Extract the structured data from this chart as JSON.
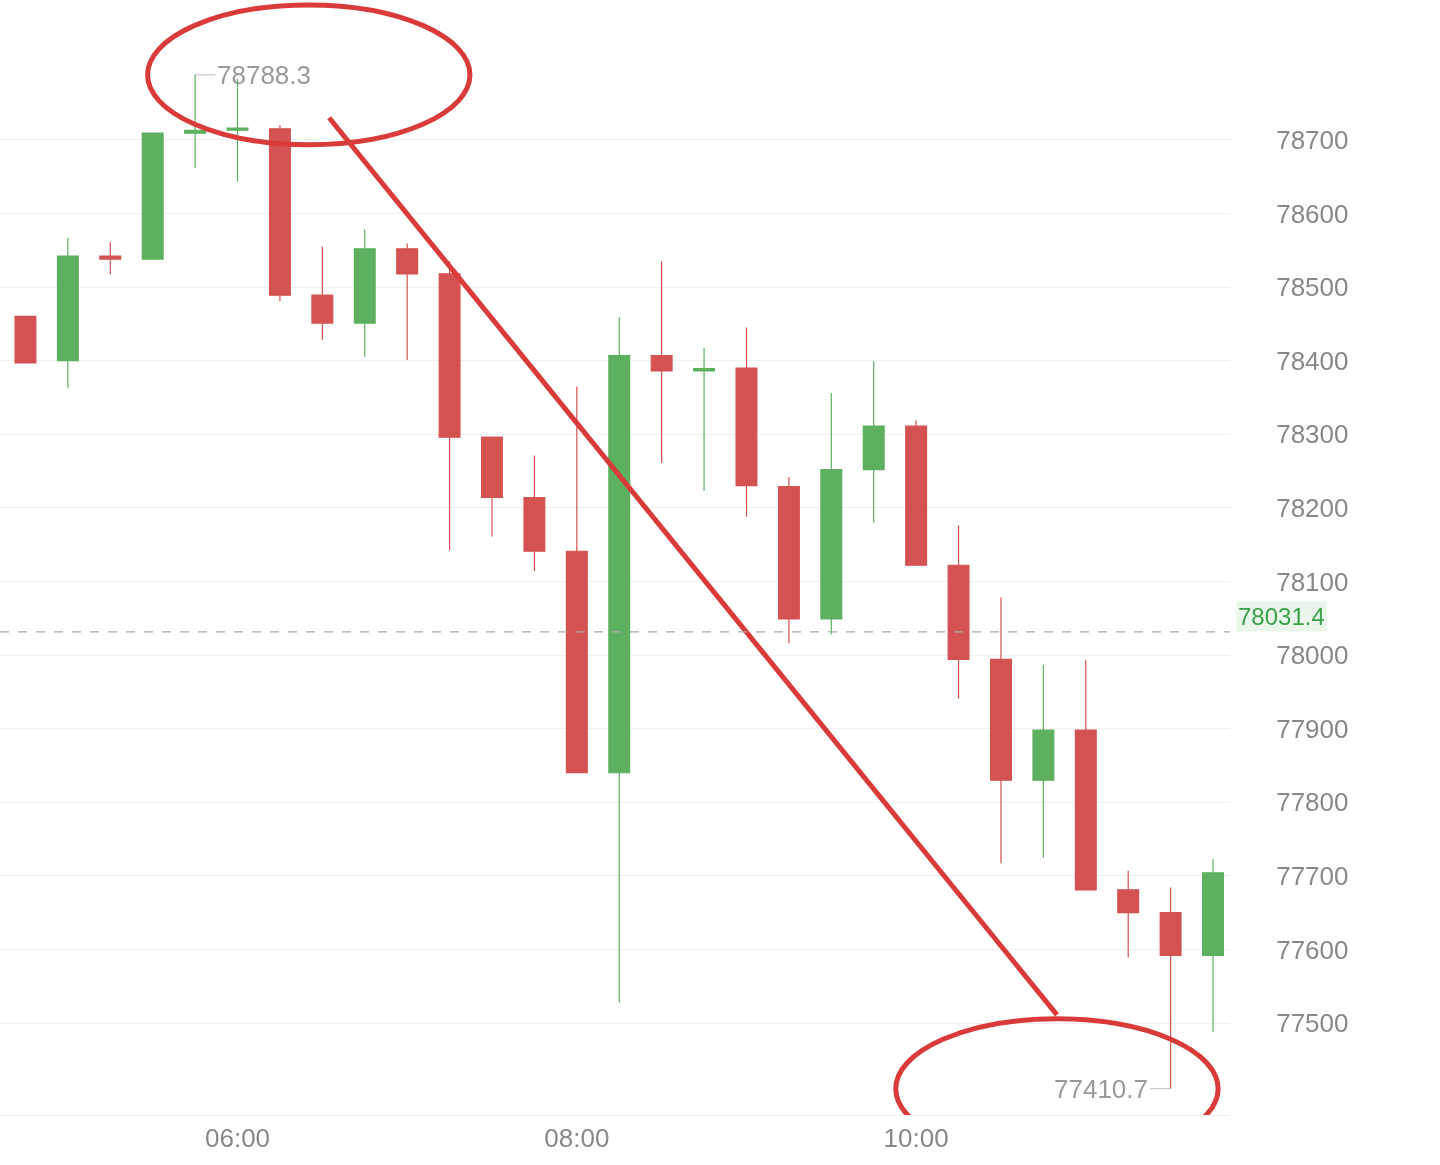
{
  "chart_data": {
    "type": "candlestick",
    "x": [
      4.75,
      5,
      5.25,
      5.5,
      5.75,
      6,
      6.25,
      6.5,
      6.75,
      7,
      7.25,
      7.5,
      7.75,
      8,
      8.25,
      8.5,
      8.75,
      9,
      9.25,
      9.5,
      9.75,
      10,
      10.25,
      10.5,
      10.75,
      11,
      11.25,
      11.5,
      11.75
    ],
    "ohlc": [
      [
        78460,
        78460,
        78397,
        78397
      ],
      [
        78400,
        78567,
        78363,
        78542
      ],
      [
        78542,
        78561,
        78517,
        78538
      ],
      [
        78538,
        78709,
        78538,
        78709
      ],
      [
        78709,
        78788.3,
        78662,
        78713
      ],
      [
        78713,
        78783,
        78643,
        78716
      ],
      [
        78715,
        78720,
        78481,
        78489
      ],
      [
        78489,
        78555,
        78428,
        78451
      ],
      [
        78451,
        78578,
        78405,
        78552
      ],
      [
        78552,
        78559,
        78401,
        78518
      ],
      [
        78518,
        78535,
        78142,
        78296
      ],
      [
        78296,
        78296,
        78161,
        78214
      ],
      [
        78214,
        78271,
        78114,
        78141
      ],
      [
        78141,
        78365,
        77840,
        77840
      ],
      [
        77840,
        78459,
        77528,
        78407
      ],
      [
        78407,
        78535,
        78261,
        78386
      ],
      [
        78386,
        78417,
        78223,
        78389
      ],
      [
        78390,
        78445,
        78188,
        78230
      ],
      [
        78229,
        78242,
        78016,
        78049
      ],
      [
        78049,
        78356,
        78028,
        78252
      ],
      [
        78252,
        78399,
        78180,
        78311
      ],
      [
        78311,
        78319,
        78122,
        78122
      ],
      [
        78122,
        78176,
        77941,
        77994
      ],
      [
        77994,
        78078,
        77717,
        77830
      ],
      [
        77830,
        77986,
        77725,
        77898
      ],
      [
        77898,
        77993,
        77681,
        77681
      ],
      [
        77681,
        77707,
        77589,
        77650
      ],
      [
        77650,
        77684,
        77410.7,
        77592
      ],
      [
        77592,
        77723,
        77488,
        77704
      ]
    ],
    "colors": [
      "#d45252",
      "#5cb05f",
      "#d45252",
      "#5cb05f",
      "#5cb05f",
      "#5cb05f",
      "#d45252",
      "#d45252",
      "#5cb05f",
      "#d45252",
      "#d45252",
      "#d45252",
      "#d45252",
      "#d45252",
      "#5cb05f",
      "#d45252",
      "#5cb05f",
      "#d45252",
      "#d45252",
      "#5cb05f",
      "#5cb05f",
      "#d45252",
      "#d45252",
      "#d45252",
      "#5cb05f",
      "#d45252",
      "#d45252",
      "#d45252",
      "#5cb05f"
    ],
    "xlim": [
      4.6,
      11.85
    ],
    "xticks": [
      {
        "value": 6,
        "label": "06:00"
      },
      {
        "value": 8,
        "label": "08:00"
      },
      {
        "value": 10,
        "label": "10:00"
      }
    ],
    "ylim": [
      77375,
      78890
    ],
    "yticks": [
      77500,
      77600,
      77700,
      77800,
      77900,
      78000,
      78100,
      78200,
      78300,
      78400,
      78500,
      78600,
      78700
    ],
    "grid": "y",
    "series": [
      {
        "type": "line",
        "x": [
          6.54,
          10.83
        ],
        "values": [
          78730,
          77511
        ],
        "color": "#d93a3a"
      }
    ],
    "ref_lines": [
      {
        "axis": "y",
        "value": 78031.4,
        "label": "78031.4",
        "color": "#aaaaaa",
        "line_style": "dashed"
      }
    ],
    "annotations": [
      {
        "text": "78788.3",
        "x": 5.75,
        "y": 78788.3
      },
      {
        "text": "77410.7",
        "x": 11.5,
        "y": 77410.7
      }
    ]
  }
}
